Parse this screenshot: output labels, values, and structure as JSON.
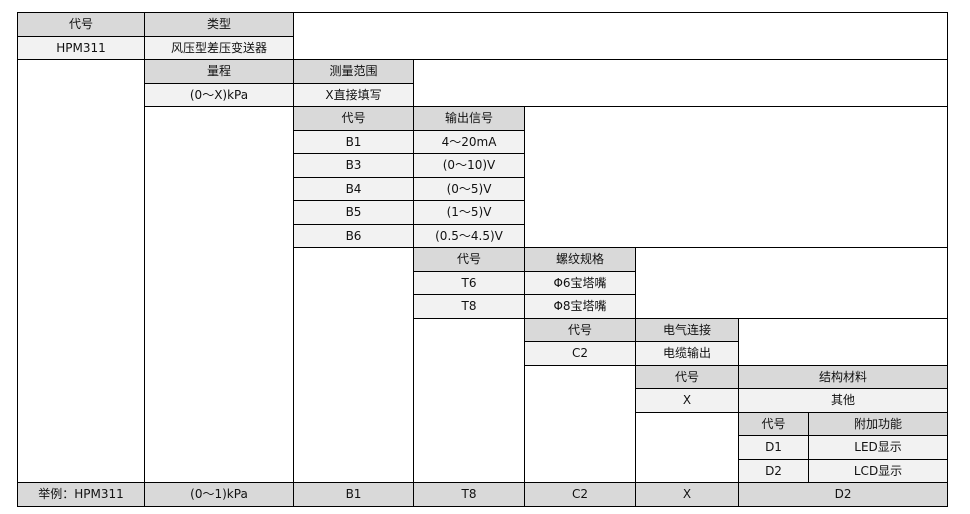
{
  "code_label": "代号",
  "model": {
    "header_type": "类型",
    "code": "HPM311",
    "type": "风压型差压变送器"
  },
  "range": {
    "header": "量程",
    "header_measure": "测量范围",
    "value": "(0～X)kPa",
    "measure": "X直接填写"
  },
  "output": {
    "header": "输出信号",
    "rows": [
      {
        "code": "B1",
        "value": "4～20mA"
      },
      {
        "code": "B3",
        "value": "(0～10)V"
      },
      {
        "code": "B4",
        "value": "(0～5)V"
      },
      {
        "code": "B5",
        "value": "(1～5)V"
      },
      {
        "code": "B6",
        "value": "(0.5～4.5)V"
      }
    ]
  },
  "thread": {
    "header": "螺纹规格",
    "rows": [
      {
        "code": "T6",
        "value": "Φ6宝塔嘴"
      },
      {
        "code": "T8",
        "value": "Φ8宝塔嘴"
      }
    ]
  },
  "electrical": {
    "header": "电气连接",
    "rows": [
      {
        "code": "C2",
        "value": "电缆输出"
      }
    ]
  },
  "material": {
    "header": "结构材料",
    "rows": [
      {
        "code": "X",
        "value": "其他"
      }
    ]
  },
  "extra": {
    "header": "附加功能",
    "rows": [
      {
        "code": "D1",
        "value": "LED显示"
      },
      {
        "code": "D2",
        "value": "LCD显示"
      }
    ]
  },
  "example": [
    "举例：HPM311",
    "(0～1)kPa",
    "B1",
    "T8",
    "C2",
    "X",
    "D2"
  ],
  "colors": {
    "header": "#d9d9d9",
    "value": "#f2f2f2",
    "border": "#000000"
  }
}
